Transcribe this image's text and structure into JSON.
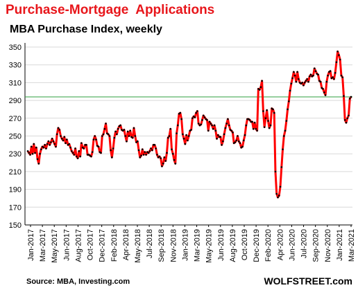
{
  "header": {
    "title": "Purchase-Mortgage  Applications",
    "subtitle": "MBA Purchase Index, weekly"
  },
  "footer": {
    "source": "Source: MBA, Investing.com",
    "brand": "WOLFSTREET.com"
  },
  "colors": {
    "title": "#e8161b",
    "series_line": "#ff0000",
    "markers": "#000000",
    "reference_line": "#2e9e3e",
    "grid": "#d9d9d9"
  },
  "chart_data": {
    "type": "line",
    "title": "",
    "xlabel": "",
    "ylabel": "",
    "ylim": [
      150,
      350
    ],
    "yticks": [
      150,
      170,
      190,
      210,
      230,
      250,
      270,
      290,
      310,
      330,
      350
    ],
    "grid": "horizontal",
    "reference_line": 294,
    "x_tick_labels": [
      "Jan-2017",
      "Mar-2017",
      "May-2017",
      "Jun-2017",
      "Aug-2017",
      "Oct-2017",
      "Dec-2017",
      "Feb-2018",
      "Apr-2018",
      "May-2018",
      "Jul-2018",
      "Sep-2018",
      "Nov-2018",
      "Jan-2019",
      "Mar-2019",
      "May-2019",
      "Jun-2019",
      "Aug-2019",
      "Oct-2019",
      "Dec-2019",
      "Feb-2020",
      "Apr-2020",
      "Jun-2020",
      "Jul-2020",
      "Sep-2020",
      "Nov-2020",
      "Jan-2021",
      "Mar-2021"
    ],
    "series": [
      {
        "values": [
          233,
          231,
          229,
          238,
          230,
          241,
          231,
          237,
          224,
          219,
          230,
          235,
          238,
          237,
          240,
          236,
          241,
          244,
          240,
          243,
          247,
          244,
          241,
          238,
          252,
          259,
          257,
          250,
          247,
          245,
          249,
          242,
          246,
          240,
          241,
          237,
          233,
          231,
          229,
          236,
          227,
          225,
          233,
          227,
          242,
          237,
          236,
          240,
          240,
          229,
          229,
          228,
          227,
          232,
          246,
          250,
          246,
          239,
          238,
          232,
          231,
          250,
          252,
          258,
          264,
          253,
          252,
          250,
          234,
          226,
          236,
          248,
          255,
          252,
          258,
          261,
          262,
          257,
          256,
          257,
          250,
          244,
          255,
          250,
          256,
          249,
          248,
          259,
          250,
          243,
          244,
          234,
          226,
          228,
          235,
          229,
          232,
          229,
          232,
          231,
          233,
          236,
          234,
          240,
          240,
          236,
          229,
          226,
          227,
          225,
          216,
          219,
          226,
          222,
          231,
          248,
          250,
          258,
          235,
          230,
          223,
          219,
          253,
          262,
          275,
          276,
          269,
          252,
          247,
          241,
          251,
          245,
          250,
          256,
          257,
          270,
          272,
          271,
          276,
          278,
          264,
          262,
          263,
          268,
          273,
          271,
          269,
          268,
          256,
          266,
          264,
          262,
          258,
          262,
          256,
          247,
          251,
          249,
          249,
          240,
          244,
          252,
          259,
          264,
          269,
          262,
          257,
          256,
          254,
          242,
          243,
          245,
          250,
          244,
          242,
          237,
          238,
          245,
          251,
          262,
          269,
          269,
          268,
          266,
          266,
          258,
          265,
          258,
          256,
          303,
          302,
          305,
          312,
          278,
          260,
          270,
          279,
          267,
          259,
          262,
          281,
          280,
          276,
          210,
          185,
          181,
          183,
          193,
          215,
          235,
          250,
          256,
          267,
          280,
          289,
          301,
          309,
          315,
          322,
          318,
          311,
          322,
          314,
          310,
          309,
          310,
          307,
          310,
          312,
          314,
          311,
          317,
          319,
          317,
          318,
          326,
          323,
          320,
          319,
          312,
          311,
          304,
          303,
          299,
          296,
          311,
          318,
          322,
          323,
          315,
          316,
          314,
          321,
          333,
          345,
          341,
          336,
          318,
          316,
          295,
          268,
          265,
          270,
          273,
          292,
          294
        ]
      }
    ]
  }
}
